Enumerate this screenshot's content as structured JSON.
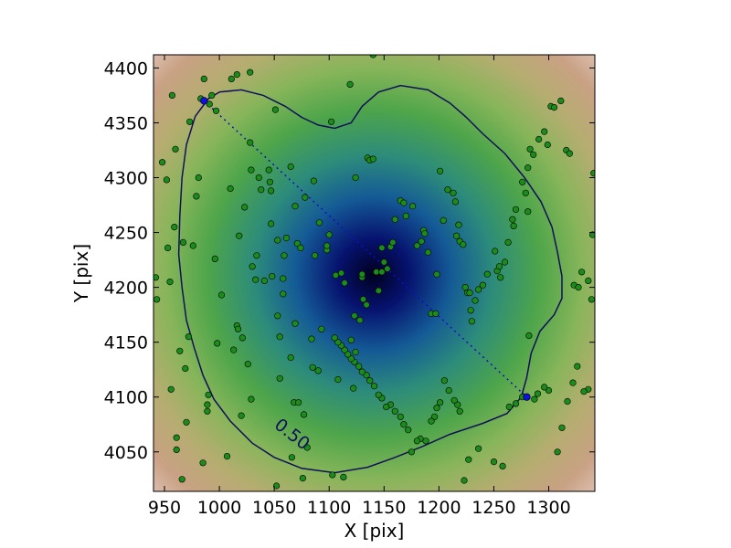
{
  "chart_data": {
    "type": "scatter",
    "title": "",
    "xlabel": "X [pix]",
    "ylabel": "Y [pix]",
    "xlim": [
      940,
      1342
    ],
    "ylim": [
      4014,
      4412
    ],
    "xticks": [
      950,
      1000,
      1050,
      1100,
      1150,
      1200,
      1250,
      1300
    ],
    "yticks": [
      4050,
      4100,
      4150,
      4200,
      4250,
      4300,
      4350,
      4400
    ],
    "grid": false,
    "background": "density map (dark blue center, green, tan, pale edges)",
    "density_center": [
      1140,
      4212
    ],
    "contour": {
      "level_label": "0.50",
      "label_position": [
        1063,
        4062
      ],
      "color": "#10105a",
      "path": [
        [
          1000,
          4378
        ],
        [
          1020,
          4380
        ],
        [
          1040,
          4375
        ],
        [
          1060,
          4365
        ],
        [
          1075,
          4355
        ],
        [
          1090,
          4348
        ],
        [
          1105,
          4345
        ],
        [
          1120,
          4350
        ],
        [
          1130,
          4365
        ],
        [
          1145,
          4378
        ],
        [
          1165,
          4384
        ],
        [
          1190,
          4380
        ],
        [
          1210,
          4368
        ],
        [
          1225,
          4355
        ],
        [
          1240,
          4340
        ],
        [
          1260,
          4322
        ],
        [
          1278,
          4300
        ],
        [
          1293,
          4278
        ],
        [
          1303,
          4255
        ],
        [
          1308,
          4232
        ],
        [
          1312,
          4210
        ],
        [
          1312,
          4190
        ],
        [
          1305,
          4175
        ],
        [
          1292,
          4160
        ],
        [
          1284,
          4140
        ],
        [
          1280,
          4118
        ],
        [
          1275,
          4100
        ],
        [
          1262,
          4085
        ],
        [
          1240,
          4076
        ],
        [
          1210,
          4066
        ],
        [
          1185,
          4055
        ],
        [
          1160,
          4045
        ],
        [
          1135,
          4036
        ],
        [
          1105,
          4031
        ],
        [
          1075,
          4035
        ],
        [
          1050,
          4045
        ],
        [
          1030,
          4058
        ],
        [
          1010,
          4078
        ],
        [
          995,
          4098
        ],
        [
          985,
          4120
        ],
        [
          977,
          4145
        ],
        [
          970,
          4170
        ],
        [
          966,
          4200
        ],
        [
          963,
          4230
        ],
        [
          964,
          4265
        ],
        [
          966,
          4300
        ],
        [
          970,
          4330
        ],
        [
          978,
          4356
        ],
        [
          990,
          4372
        ],
        [
          1000,
          4378
        ]
      ]
    },
    "axis_line": {
      "style": "dotted",
      "color": "#1010c0",
      "endpoints": [
        [
          986,
          4370
        ],
        [
          1280,
          4100
        ]
      ]
    },
    "series": [
      {
        "marker": "circle",
        "color": "#1a8c1a",
        "points": [
          [
            942,
            4209
          ],
          [
            943,
            4189
          ],
          [
            948,
            4314
          ],
          [
            952,
            4298
          ],
          [
            953,
            4236
          ],
          [
            955,
            4205
          ],
          [
            956,
            4107
          ],
          [
            957,
            4375
          ],
          [
            959,
            4255
          ],
          [
            960,
            4326
          ],
          [
            961,
            4063
          ],
          [
            961,
            4052
          ],
          [
            964,
            4142
          ],
          [
            966,
            4025
          ],
          [
            967,
            4241
          ],
          [
            969,
            4126
          ],
          [
            970,
            4077
          ],
          [
            972,
            4155
          ],
          [
            973,
            4351
          ],
          [
            976,
            4238
          ],
          [
            979,
            4283
          ],
          [
            981,
            4300
          ],
          [
            983,
            4372
          ],
          [
            985,
            4040
          ],
          [
            986,
            4390
          ],
          [
            989,
            4093
          ],
          [
            989,
            4087
          ],
          [
            990,
            4102
          ],
          [
            991,
            4367
          ],
          [
            993,
            4375
          ],
          [
            996,
            4226
          ],
          [
            997,
            4361
          ],
          [
            998,
            4149
          ],
          [
            1002,
            4193
          ],
          [
            1007,
            4046
          ],
          [
            1010,
            4290
          ],
          [
            1011,
            4390
          ],
          [
            1013,
            4143
          ],
          [
            1016,
            4394
          ],
          [
            1016,
            4165
          ],
          [
            1017,
            4162
          ],
          [
            1018,
            4247
          ],
          [
            1020,
            4083
          ],
          [
            1021,
            4154
          ],
          [
            1023,
            4273
          ],
          [
            1026,
            4130
          ],
          [
            1028,
            4396
          ],
          [
            1028,
            4332
          ],
          [
            1029,
            4098
          ],
          [
            1029,
            4307
          ],
          [
            1030,
            4219
          ],
          [
            1033,
            4207
          ],
          [
            1034,
            4229
          ],
          [
            1036,
            4300
          ],
          [
            1038,
            4289
          ],
          [
            1041,
            4206
          ],
          [
            1045,
            4307
          ],
          [
            1046,
            4296
          ],
          [
            1047,
            4288
          ],
          [
            1047,
            4258
          ],
          [
            1048,
            4210
          ],
          [
            1051,
            4362
          ],
          [
            1052,
            4019
          ],
          [
            1053,
            4243
          ],
          [
            1053,
            4174
          ],
          [
            1055,
            4117
          ],
          [
            1055,
            4155
          ],
          [
            1058,
            4208
          ],
          [
            1058,
            4194
          ],
          [
            1059,
            4229
          ],
          [
            1061,
            4245
          ],
          [
            1065,
            4136
          ],
          [
            1065,
            4310
          ],
          [
            1066,
            4045
          ],
          [
            1068,
            4095
          ],
          [
            1069,
            4274
          ],
          [
            1069,
            4167
          ],
          [
            1071,
            4240
          ],
          [
            1072,
            4095
          ],
          [
            1074,
            4236
          ],
          [
            1076,
            4026
          ],
          [
            1077,
            4084
          ],
          [
            1078,
            4282
          ],
          [
            1080,
            4054
          ],
          [
            1084,
            4153
          ],
          [
            1085,
            4127
          ],
          [
            1086,
            4297
          ],
          [
            1087,
            4229
          ],
          [
            1090,
            4124
          ],
          [
            1091,
            4259
          ],
          [
            1093,
            4162
          ],
          [
            1098,
            4234
          ],
          [
            1098,
            4238
          ],
          [
            1100,
            4248
          ],
          [
            1102,
            4351
          ],
          [
            1103,
            4029
          ],
          [
            1106,
            4211
          ],
          [
            1108,
            4116
          ],
          [
            1111,
            4213
          ],
          [
            1113,
            4027
          ],
          [
            1114,
            4204
          ],
          [
            1119,
            4385
          ],
          [
            1120,
            4152
          ],
          [
            1122,
            4108
          ],
          [
            1123,
            4174
          ],
          [
            1124,
            4300
          ],
          [
            1124,
            4141
          ],
          [
            1128,
            4170
          ],
          [
            1130,
            4209
          ],
          [
            1130,
            4212
          ],
          [
            1131,
            4189
          ],
          [
            1134,
            4184
          ],
          [
            1135,
            4318
          ],
          [
            1137,
            4316
          ],
          [
            1140,
            4412
          ],
          [
            1140,
            4317
          ],
          [
            1143,
            4214
          ],
          [
            1145,
            4197
          ],
          [
            1148,
            4236
          ],
          [
            1148,
            4214
          ],
          [
            1150,
            4223
          ],
          [
            1153,
            4217
          ],
          [
            1156,
            4237
          ],
          [
            1158,
            4241
          ],
          [
            1160,
            4262
          ],
          [
            1165,
            4279
          ],
          [
            1168,
            4277
          ],
          [
            1170,
            4265
          ],
          [
            1176,
            4274
          ],
          [
            1180,
            4238
          ],
          [
            1184,
            4242
          ],
          [
            1186,
            4252
          ],
          [
            1187,
            4249
          ],
          [
            1190,
            4232
          ],
          [
            1193,
            4176
          ],
          [
            1197,
            4176
          ],
          [
            1198,
            4212
          ],
          [
            1201,
            4306
          ],
          [
            1204,
            4261
          ],
          [
            1208,
            4289
          ],
          [
            1213,
            4286
          ],
          [
            1215,
            4278
          ],
          [
            1216,
            4247
          ],
          [
            1218,
            4257
          ],
          [
            1219,
            4242
          ],
          [
            1222,
            4239
          ],
          [
            1224,
            4200
          ],
          [
            1226,
            4195
          ],
          [
            1228,
            4195
          ],
          [
            1229,
            4179
          ],
          [
            1230,
            4169
          ],
          [
            1233,
            4188
          ],
          [
            1236,
            4198
          ],
          [
            1240,
            4202
          ],
          [
            1244,
            4212
          ],
          [
            1251,
            4233
          ],
          [
            1253,
            4215
          ],
          [
            1255,
            4219
          ],
          [
            1256,
            4209
          ],
          [
            1260,
            4223
          ],
          [
            1263,
            4241
          ],
          [
            1267,
            4262
          ],
          [
            1268,
            4256
          ],
          [
            1270,
            4271
          ],
          [
            1276,
            4296
          ],
          [
            1279,
            4286
          ],
          [
            1281,
            4269
          ],
          [
            1281,
            4309
          ],
          [
            1283,
            4326
          ],
          [
            1286,
            4321
          ],
          [
            1291,
            4335
          ],
          [
            1296,
            4342
          ],
          [
            1299,
            4330
          ],
          [
            1302,
            4365
          ],
          [
            1305,
            4364
          ],
          [
            1311,
            4370
          ],
          [
            1316,
            4325
          ],
          [
            1319,
            4322
          ],
          [
            1323,
            4202
          ],
          [
            1327,
            4200
          ],
          [
            1330,
            4214
          ],
          [
            1336,
            4206
          ],
          [
            1339,
            4189
          ],
          [
            1340,
            4248
          ],
          [
            1341,
            4304
          ],
          [
            1336,
            4107
          ],
          [
            1332,
            4105
          ],
          [
            1326,
            4128
          ],
          [
            1322,
            4113
          ],
          [
            1317,
            4096
          ],
          [
            1312,
            4072
          ],
          [
            1308,
            4050
          ],
          [
            1300,
            4106
          ],
          [
            1296,
            4109
          ],
          [
            1290,
            4103
          ],
          [
            1287,
            4098
          ],
          [
            1282,
            4156
          ],
          [
            1276,
            4100
          ],
          [
            1270,
            4094
          ],
          [
            1264,
            4091
          ],
          [
            1258,
            4037
          ],
          [
            1250,
            4041
          ],
          [
            1236,
            4053
          ],
          [
            1227,
            4043
          ],
          [
            1223,
            4024
          ],
          [
            1219,
            4087
          ],
          [
            1217,
            4093
          ],
          [
            1214,
            4097
          ],
          [
            1209,
            4106
          ],
          [
            1205,
            4115
          ],
          [
            1201,
            4095
          ],
          [
            1198,
            4090
          ],
          [
            1196,
            4082
          ],
          [
            1193,
            4078
          ],
          [
            1188,
            4060
          ],
          [
            1183,
            4062
          ],
          [
            1180,
            4060
          ],
          [
            1175,
            4050
          ],
          [
            1172,
            4070
          ],
          [
            1168,
            4075
          ],
          [
            1165,
            4082
          ],
          [
            1160,
            4087
          ],
          [
            1156,
            4093
          ],
          [
            1152,
            4091
          ],
          [
            1148,
            4099
          ],
          [
            1145,
            4102
          ],
          [
            1141,
            4110
          ],
          [
            1137,
            4115
          ],
          [
            1134,
            4120
          ],
          [
            1130,
            4123
          ],
          [
            1127,
            4128
          ],
          [
            1123,
            4132
          ],
          [
            1120,
            4135
          ],
          [
            1117,
            4139
          ],
          [
            1114,
            4143
          ],
          [
            1111,
            4147
          ],
          [
            1108,
            4150
          ],
          [
            1105,
            4154
          ]
        ]
      }
    ],
    "markers_blue": [
      [
        986,
        4370
      ],
      [
        1280,
        4100
      ]
    ]
  }
}
